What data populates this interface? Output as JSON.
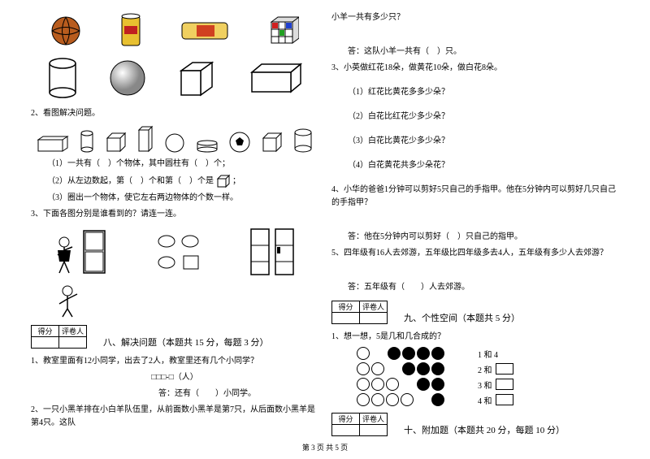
{
  "footer": "第 3 页 共 5 页",
  "left": {
    "q2": "2、看图解决问题。",
    "q2_1": "（1）一共有（　）个物体，其中圆柱有（　）个；",
    "q2_2": "（2）从左边数起，第（　）个和第（　）个是",
    "q2_2_suffix": "；",
    "q2_3": "（3）圈出一个物体，使它左右两边物体的个数一样。",
    "q3": "3、下面各图分别是谁看到的？请连一连。",
    "sec8_title": "八、解决问题（本题共 15 分，每题 3 分）",
    "q8_1": "1、教室里面有12小同学，出去了2人，教室里还有几个小同学？",
    "q8_1_eq": "□□□-□（人）",
    "q8_1_ans": "答：还有（　　）小同学。",
    "q8_2": "2、一只小黑羊排在小白羊队伍里，从前面数小黑羊是第7只，从后面数小黑羊是第4只。这队",
    "score_h1": "得分",
    "score_h2": "评卷人"
  },
  "right": {
    "q_cont": "小羊一共有多少只？",
    "q_cont_ans": "答：这队小羊一共有（　）只。",
    "q3": "3、小英做红花18朵，做黄花10朵，做白花8朵。",
    "q3_1": "（1）红花比黄花多多少朵？",
    "q3_2": "（2）白花比红花少多少朵？",
    "q3_3": "（3）白花比黄花少多少朵？",
    "q3_4": "（4）白花黄花共多少朵花？",
    "q4": "4、小华的爸爸1分钟可以剪好5只自己的手指甲。他在5分钟内可以剪好几只自己的手指甲？",
    "q4_ans": "答：他在5分钟内可以剪好（　）只自己的指甲。",
    "q5": "5、四年级有16人去郊游，五年级比四年级多去4人，五年级有多少人去郊游？",
    "q5_ans": "答：五年级有（　　）人去郊游。",
    "sec9_title": "九、个性空间（本题共 5 分）",
    "q9_1": "1、想一想，5是几和几合成的？",
    "beads": [
      {
        "empty": 1,
        "filled": 4,
        "label": "1 和 4"
      },
      {
        "empty": 2,
        "filled": 3,
        "label": "2 和"
      },
      {
        "empty": 3,
        "filled": 2,
        "label": "3 和"
      },
      {
        "empty": 4,
        "filled": 1,
        "label": "4 和"
      }
    ],
    "sec10_title": "十、附加题（本题共 20 分，每题 10 分）",
    "score_h1": "得分",
    "score_h2": "评卷人"
  }
}
